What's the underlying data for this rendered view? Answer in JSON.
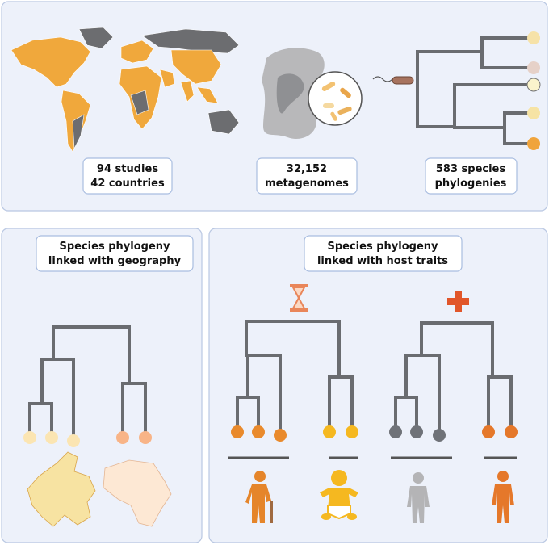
{
  "top_panel": {
    "studies": {
      "line1": "94 studies",
      "line2": "42 countries"
    },
    "metagenomes": {
      "line1": "32,152",
      "line2": "metagenomes"
    },
    "phylogenies": {
      "line1": "583 species",
      "line2": "phylogenies"
    }
  },
  "geography_panel": {
    "title": {
      "line1": "Species phylogeny",
      "line2": "linked with geography"
    }
  },
  "host_traits_panel": {
    "title": {
      "line1": "Species phylogeny",
      "line2": "linked with host traits"
    }
  }
}
